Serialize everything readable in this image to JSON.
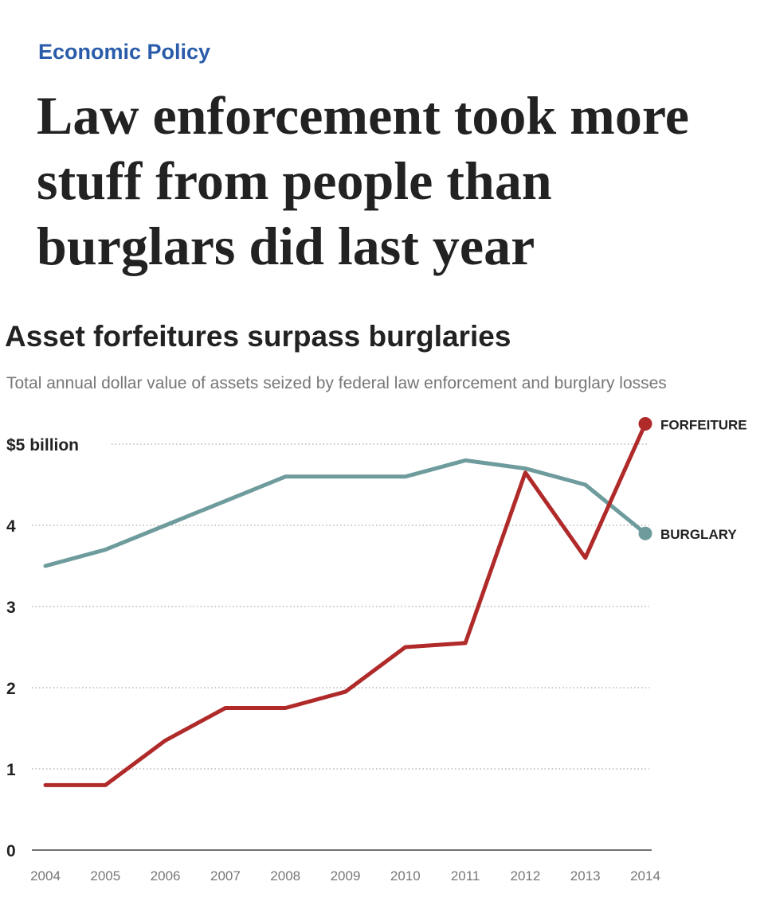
{
  "header": {
    "kicker": "Economic Policy",
    "headline": "Law enforcement took more stuff from people than burglars did last year"
  },
  "chart_data": {
    "type": "line",
    "title": "Asset forfeitures surpass burglaries",
    "subtitle": "Total annual dollar value of assets seized by federal law enforcement and burglary losses",
    "x": [
      "2004",
      "2005",
      "2006",
      "2007",
      "2008",
      "2009",
      "2010",
      "2011",
      "2012",
      "2013",
      "2014"
    ],
    "y_ticks": [
      {
        "value": 0,
        "label": "0"
      },
      {
        "value": 1,
        "label": "1"
      },
      {
        "value": 2,
        "label": "2"
      },
      {
        "value": 3,
        "label": "3"
      },
      {
        "value": 4,
        "label": "4"
      },
      {
        "value": 5,
        "label": "$5 billion"
      }
    ],
    "ylim": [
      0,
      5
    ],
    "series": [
      {
        "name": "BURGLARY",
        "color": "#6e9b9c",
        "values": [
          3.5,
          3.7,
          4.0,
          4.3,
          4.6,
          4.6,
          4.6,
          4.8,
          4.7,
          4.5,
          3.9
        ]
      },
      {
        "name": "FORFEITURE",
        "color": "#b02a2a",
        "values": [
          0.8,
          0.8,
          1.35,
          1.75,
          1.75,
          1.95,
          2.5,
          2.55,
          4.65,
          3.6,
          5.25
        ]
      }
    ],
    "grid": true,
    "grid_style": "dotted",
    "legend": "direct labels at line ends"
  }
}
